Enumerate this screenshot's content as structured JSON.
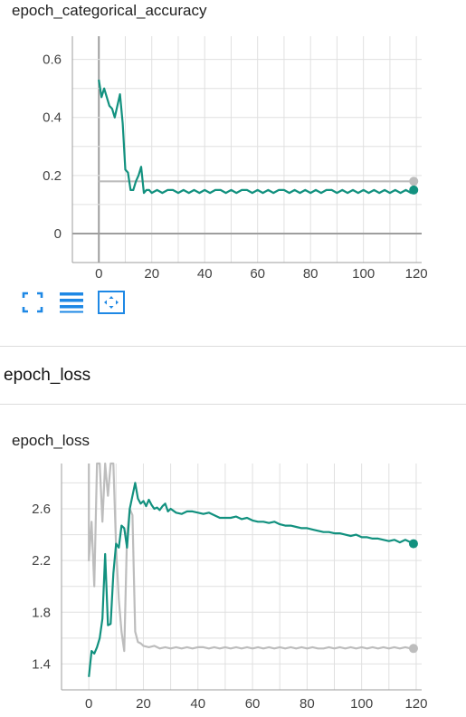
{
  "card1": {
    "title": "epoch_categorical_accuracy",
    "toolbar": {
      "fit_icon": "fullscreen-icon",
      "log_icon": "lines-icon",
      "zoom_icon": "fit-domain-icon"
    }
  },
  "section": {
    "title": "epoch_loss"
  },
  "card2": {
    "title": "epoch_loss"
  },
  "colors": {
    "train": "#12917f",
    "validation": "#bdbdbd",
    "axis": "#9e9e9e",
    "grid": "#e0e0e0",
    "accent": "#1e88e5"
  },
  "chart_data": [
    {
      "type": "line",
      "title": "epoch_categorical_accuracy",
      "xlabel": "",
      "ylabel": "",
      "xlim": [
        -10,
        122
      ],
      "ylim": [
        -0.1,
        0.68
      ],
      "x_ticks": [
        0,
        20,
        40,
        60,
        80,
        100,
        120
      ],
      "y_ticks": [
        0,
        0.2,
        0.4,
        0.6
      ],
      "y_tick_labels": [
        "0",
        "0.2",
        "0.4",
        "0.6"
      ],
      "grid": true,
      "series": [
        {
          "color": "#12917f",
          "x": [
            0,
            1,
            2,
            3,
            4,
            5,
            6,
            7,
            8,
            9,
            10,
            11,
            12,
            13,
            14,
            15,
            16,
            17,
            18,
            19,
            20,
            22,
            24,
            26,
            28,
            30,
            32,
            34,
            36,
            38,
            40,
            42,
            44,
            46,
            48,
            50,
            52,
            54,
            56,
            58,
            60,
            62,
            64,
            66,
            68,
            70,
            72,
            74,
            76,
            78,
            80,
            82,
            84,
            86,
            88,
            90,
            92,
            94,
            96,
            98,
            100,
            102,
            104,
            106,
            108,
            110,
            112,
            114,
            116,
            118,
            119
          ],
          "y": [
            0.53,
            0.47,
            0.5,
            0.47,
            0.44,
            0.43,
            0.4,
            0.44,
            0.48,
            0.38,
            0.22,
            0.21,
            0.15,
            0.15,
            0.18,
            0.2,
            0.23,
            0.14,
            0.15,
            0.15,
            0.14,
            0.15,
            0.14,
            0.15,
            0.15,
            0.14,
            0.15,
            0.14,
            0.15,
            0.14,
            0.15,
            0.14,
            0.15,
            0.15,
            0.14,
            0.15,
            0.14,
            0.15,
            0.15,
            0.14,
            0.15,
            0.14,
            0.15,
            0.14,
            0.15,
            0.15,
            0.14,
            0.15,
            0.14,
            0.15,
            0.14,
            0.15,
            0.14,
            0.15,
            0.15,
            0.14,
            0.15,
            0.14,
            0.15,
            0.14,
            0.15,
            0.14,
            0.15,
            0.14,
            0.15,
            0.14,
            0.15,
            0.14,
            0.15,
            0.14,
            0.15
          ],
          "endpoint": true
        },
        {
          "color": "#bdbdbd",
          "x": [
            0,
            119
          ],
          "y": [
            0.18,
            0.18
          ],
          "endpoint": true
        }
      ]
    },
    {
      "type": "line",
      "title": "epoch_loss",
      "xlabel": "",
      "ylabel": "",
      "xlim": [
        -10,
        122
      ],
      "ylim": [
        1.2,
        2.95
      ],
      "x_ticks": [
        0,
        20,
        40,
        60,
        80,
        100,
        120
      ],
      "y_ticks": [
        1.4,
        1.8,
        2.2,
        2.6
      ],
      "y_tick_labels": [
        "1.4",
        "1.8",
        "2.2",
        "2.6"
      ],
      "grid": true,
      "series": [
        {
          "color": "#12917f",
          "x": [
            0,
            1,
            2,
            3,
            4,
            5,
            6,
            7,
            8,
            9,
            10,
            11,
            12,
            13,
            14,
            15,
            16,
            17,
            18,
            19,
            20,
            21,
            22,
            23,
            24,
            25,
            26,
            27,
            28,
            29,
            30,
            32,
            34,
            36,
            38,
            40,
            42,
            44,
            46,
            48,
            50,
            52,
            54,
            56,
            58,
            60,
            62,
            64,
            66,
            68,
            70,
            72,
            74,
            76,
            78,
            80,
            82,
            84,
            86,
            88,
            90,
            92,
            94,
            96,
            98,
            100,
            102,
            104,
            106,
            108,
            110,
            112,
            114,
            116,
            118,
            119
          ],
          "y": [
            1.3,
            1.5,
            1.48,
            1.53,
            1.6,
            1.75,
            2.25,
            1.7,
            1.71,
            2.1,
            2.33,
            2.3,
            2.47,
            2.45,
            2.3,
            2.6,
            2.7,
            2.8,
            2.68,
            2.64,
            2.66,
            2.62,
            2.67,
            2.63,
            2.6,
            2.61,
            2.59,
            2.62,
            2.64,
            2.58,
            2.6,
            2.57,
            2.56,
            2.58,
            2.58,
            2.57,
            2.56,
            2.57,
            2.55,
            2.53,
            2.53,
            2.53,
            2.54,
            2.52,
            2.53,
            2.51,
            2.5,
            2.5,
            2.49,
            2.5,
            2.48,
            2.47,
            2.47,
            2.46,
            2.45,
            2.45,
            2.44,
            2.43,
            2.42,
            2.42,
            2.41,
            2.41,
            2.4,
            2.39,
            2.4,
            2.38,
            2.38,
            2.37,
            2.37,
            2.36,
            2.35,
            2.36,
            2.34,
            2.36,
            2.34,
            2.33
          ],
          "endpoint": true
        },
        {
          "color": "#bdbdbd",
          "x": [
            0,
            0,
            1,
            2,
            3,
            4,
            5,
            6,
            7,
            8,
            9,
            10,
            11,
            12,
            13,
            14,
            15,
            16,
            17,
            18,
            19,
            20,
            22,
            24,
            26,
            28,
            30,
            32,
            34,
            36,
            38,
            40,
            42,
            44,
            46,
            48,
            50,
            52,
            54,
            56,
            58,
            60,
            62,
            64,
            66,
            68,
            70,
            72,
            74,
            76,
            78,
            80,
            82,
            84,
            86,
            88,
            90,
            92,
            94,
            96,
            98,
            100,
            102,
            104,
            106,
            108,
            110,
            112,
            114,
            116,
            118,
            119
          ],
          "y": [
            2.95,
            2.2,
            2.5,
            2.0,
            2.95,
            2.95,
            2.5,
            2.95,
            2.7,
            2.95,
            2.95,
            2.3,
            1.9,
            1.65,
            1.5,
            2.4,
            2.6,
            2.55,
            1.65,
            1.57,
            1.56,
            1.54,
            1.53,
            1.54,
            1.52,
            1.53,
            1.52,
            1.53,
            1.52,
            1.53,
            1.52,
            1.53,
            1.53,
            1.52,
            1.53,
            1.52,
            1.53,
            1.52,
            1.53,
            1.52,
            1.53,
            1.52,
            1.53,
            1.52,
            1.53,
            1.52,
            1.53,
            1.52,
            1.53,
            1.52,
            1.53,
            1.52,
            1.53,
            1.52,
            1.52,
            1.53,
            1.52,
            1.53,
            1.52,
            1.53,
            1.52,
            1.53,
            1.52,
            1.53,
            1.52,
            1.53,
            1.52,
            1.53,
            1.52,
            1.53,
            1.52,
            1.52
          ],
          "endpoint": true
        }
      ]
    }
  ]
}
